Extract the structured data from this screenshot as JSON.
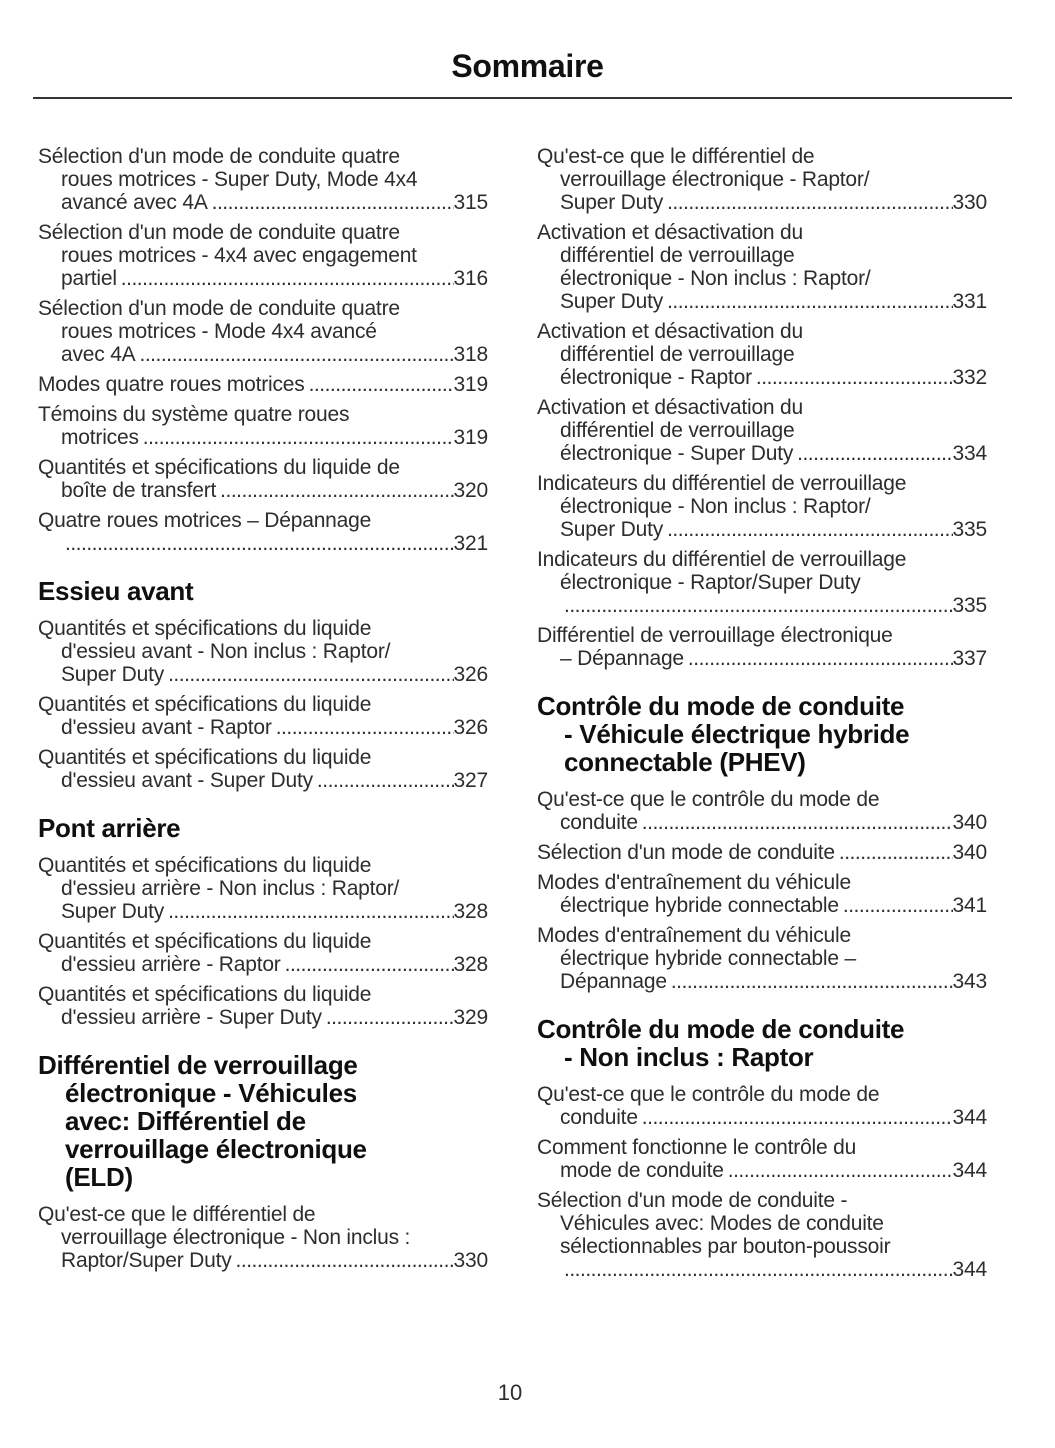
{
  "header": {
    "title": "Sommaire"
  },
  "footer": {
    "page_number": "10"
  },
  "toc": {
    "left_column": [
      {
        "type": "entry",
        "lines": [
          "Sélection d'un mode de conduite quatre",
          "roues motrices - Super Duty, Mode 4x4",
          "avancé avec 4A"
        ],
        "page": "315"
      },
      {
        "type": "entry",
        "lines": [
          "Sélection d'un mode de conduite quatre",
          "roues motrices - 4x4 avec engagement",
          "partiel"
        ],
        "page": "316"
      },
      {
        "type": "entry",
        "lines": [
          "Sélection d'un mode de conduite quatre",
          "roues motrices - Mode 4x4 avancé",
          "avec 4A"
        ],
        "page": "318"
      },
      {
        "type": "entry",
        "lines": [
          "Modes quatre roues motrices"
        ],
        "page": "319"
      },
      {
        "type": "entry",
        "lines": [
          "Témoins du système quatre roues",
          "motrices"
        ],
        "page": "319"
      },
      {
        "type": "entry",
        "lines": [
          "Quantités et spécifications du liquide de",
          "boîte de transfert"
        ],
        "page": "320"
      },
      {
        "type": "entry",
        "lines": [
          "Quatre roues motrices – Dépannage",
          ""
        ],
        "page": "321"
      },
      {
        "type": "heading",
        "lines": [
          "Essieu avant"
        ]
      },
      {
        "type": "entry",
        "lines": [
          "Quantités et spécifications du liquide",
          "d'essieu avant - Non inclus : Raptor/",
          "Super Duty"
        ],
        "page": "326"
      },
      {
        "type": "entry",
        "lines": [
          "Quantités et spécifications du liquide",
          "d'essieu avant - Raptor"
        ],
        "page": "326"
      },
      {
        "type": "entry",
        "lines": [
          "Quantités et spécifications du liquide",
          "d'essieu avant - Super Duty"
        ],
        "page": "327"
      },
      {
        "type": "heading",
        "lines": [
          "Pont arrière"
        ]
      },
      {
        "type": "entry",
        "lines": [
          "Quantités et spécifications du liquide",
          "d'essieu arrière - Non inclus : Raptor/",
          "Super Duty"
        ],
        "page": "328"
      },
      {
        "type": "entry",
        "lines": [
          "Quantités et spécifications du liquide",
          "d'essieu arrière - Raptor"
        ],
        "page": "328"
      },
      {
        "type": "entry",
        "lines": [
          "Quantités et spécifications du liquide",
          "d'essieu arrière - Super Duty"
        ],
        "page": "329"
      },
      {
        "type": "heading",
        "lines": [
          "Différentiel de verrouillage",
          "électronique - Véhicules",
          "avec: Différentiel de",
          "verrouillage électronique",
          "(ELD)"
        ]
      },
      {
        "type": "entry",
        "lines": [
          "Qu'est-ce que le différentiel de",
          "verrouillage électronique - Non inclus :",
          "Raptor/Super Duty"
        ],
        "page": "330"
      }
    ],
    "right_column": [
      {
        "type": "entry",
        "lines": [
          "Qu'est-ce que le différentiel de",
          "verrouillage électronique - Raptor/",
          "Super Duty"
        ],
        "page": "330"
      },
      {
        "type": "entry",
        "lines": [
          "Activation et désactivation du",
          "différentiel de verrouillage",
          "électronique - Non inclus : Raptor/",
          "Super Duty"
        ],
        "page": "331"
      },
      {
        "type": "entry",
        "lines": [
          "Activation et désactivation du",
          "différentiel de verrouillage",
          "électronique - Raptor"
        ],
        "page": "332"
      },
      {
        "type": "entry",
        "lines": [
          "Activation et désactivation du",
          "différentiel de verrouillage",
          "électronique - Super Duty"
        ],
        "page": "334"
      },
      {
        "type": "entry",
        "lines": [
          "Indicateurs du différentiel de verrouillage",
          "électronique - Non inclus : Raptor/",
          "Super Duty"
        ],
        "page": "335"
      },
      {
        "type": "entry",
        "lines": [
          "Indicateurs du différentiel de verrouillage",
          "électronique - Raptor/Super Duty",
          ""
        ],
        "page": "335"
      },
      {
        "type": "entry",
        "lines": [
          "Différentiel de verrouillage électronique",
          "– Dépannage"
        ],
        "page": "337"
      },
      {
        "type": "heading",
        "lines": [
          "Contrôle du mode de conduite",
          "- Véhicule électrique hybride",
          "connectable (PHEV)"
        ]
      },
      {
        "type": "entry",
        "lines": [
          "Qu'est-ce que le contrôle du mode de",
          "conduite"
        ],
        "page": "340"
      },
      {
        "type": "entry",
        "lines": [
          "Sélection d'un mode de conduite"
        ],
        "page": "340"
      },
      {
        "type": "entry",
        "lines": [
          "Modes d'entraînement du véhicule",
          "électrique hybride connectable"
        ],
        "page": "341"
      },
      {
        "type": "entry",
        "lines": [
          "Modes d'entraînement du véhicule",
          "électrique hybride connectable –",
          "Dépannage"
        ],
        "page": "343"
      },
      {
        "type": "heading",
        "lines": [
          "Contrôle du mode de conduite",
          "- Non inclus : Raptor"
        ]
      },
      {
        "type": "entry",
        "lines": [
          "Qu'est-ce que le contrôle du mode de",
          "conduite"
        ],
        "page": "344"
      },
      {
        "type": "entry",
        "lines": [
          "Comment fonctionne le contrôle du",
          "mode de conduite"
        ],
        "page": "344"
      },
      {
        "type": "entry",
        "lines": [
          "Sélection d'un mode de conduite -",
          "Véhicules avec: Modes de conduite",
          "sélectionnables par bouton-poussoir",
          ""
        ],
        "page": "344"
      }
    ]
  }
}
